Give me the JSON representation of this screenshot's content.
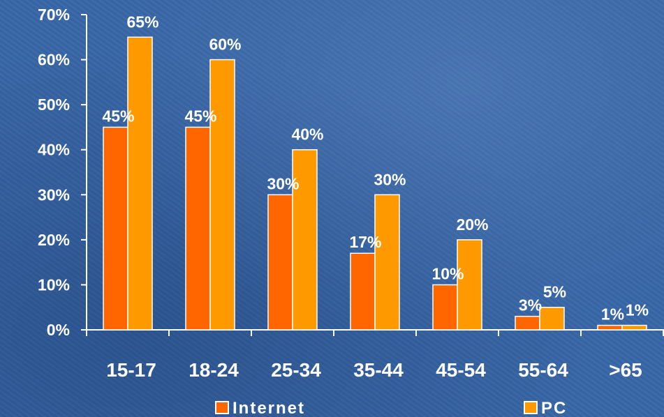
{
  "chart_data": {
    "type": "bar",
    "categories": [
      "15-17",
      "18-24",
      "25-34",
      "35-44",
      "45-54",
      "55-64",
      ">65"
    ],
    "series": [
      {
        "name": "Internet",
        "color": "#ff6600",
        "values": [
          45,
          45,
          30,
          17,
          10,
          3,
          1
        ],
        "labels": [
          "45%",
          "45%",
          "30%",
          "17%",
          "10%",
          "3%",
          "1%"
        ]
      },
      {
        "name": "PC",
        "color": "#ff9900",
        "values": [
          65,
          60,
          40,
          30,
          20,
          5,
          1
        ],
        "labels": [
          "65%",
          "60%",
          "40%",
          "30%",
          "20%",
          "5%",
          "1%"
        ]
      }
    ],
    "ylim": [
      0,
      70
    ],
    "yticks": [
      0,
      10,
      20,
      30,
      40,
      50,
      60,
      70
    ],
    "ytick_labels": [
      "0%",
      "10%",
      "20%",
      "30%",
      "40%",
      "50%",
      "60%",
      "70%"
    ],
    "legend_position": "bottom",
    "grid": false,
    "title": "",
    "xlabel": "",
    "ylabel": ""
  }
}
